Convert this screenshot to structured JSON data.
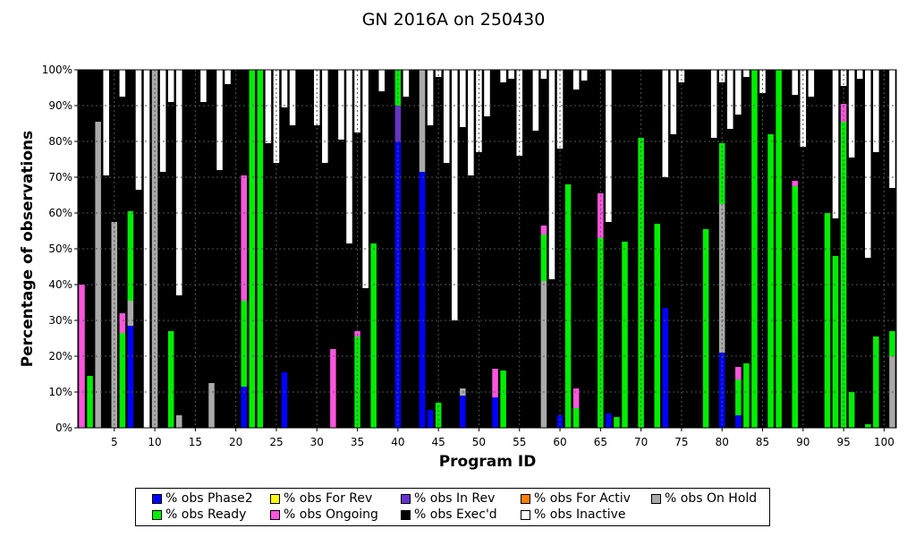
{
  "chart_data": {
    "type": "bar",
    "stacked": true,
    "title": "GN 2016A on 250430",
    "xlabel": "Program ID",
    "ylabel": "Percentage of observations",
    "ylim": [
      0,
      100
    ],
    "x_ticks": [
      5,
      10,
      15,
      20,
      25,
      30,
      35,
      40,
      45,
      50,
      55,
      60,
      65,
      70,
      75,
      80,
      85,
      90,
      95,
      100
    ],
    "y_ticks": [
      "0%",
      "10%",
      "20%",
      "30%",
      "40%",
      "50%",
      "60%",
      "70%",
      "80%",
      "90%",
      "100%"
    ],
    "grid": true,
    "legend_position": "bottom",
    "categories": [
      1,
      2,
      3,
      4,
      5,
      6,
      7,
      8,
      9,
      10,
      11,
      12,
      13,
      14,
      15,
      16,
      17,
      18,
      19,
      20,
      21,
      22,
      23,
      24,
      25,
      26,
      27,
      28,
      29,
      30,
      31,
      32,
      33,
      34,
      35,
      36,
      37,
      38,
      39,
      40,
      41,
      42,
      43,
      44,
      45,
      46,
      47,
      48,
      49,
      50,
      51,
      52,
      53,
      54,
      55,
      56,
      57,
      58,
      59,
      60,
      61,
      62,
      63,
      64,
      65,
      66,
      67,
      68,
      69,
      70,
      71,
      72,
      73,
      74,
      75,
      76,
      77,
      78,
      79,
      80,
      81,
      82,
      83,
      84,
      85,
      86,
      87,
      88,
      89,
      90,
      91,
      92,
      93,
      94,
      95,
      96,
      97,
      98,
      99,
      100,
      101
    ],
    "series": [
      {
        "name": "% obs Phase2",
        "color": "#0000ff",
        "values": [
          0,
          0,
          0,
          0,
          0,
          0,
          28.5,
          0,
          0,
          0,
          0,
          0,
          0,
          0,
          0,
          0,
          0,
          0,
          0,
          0,
          11.5,
          0,
          0,
          0,
          0,
          15.5,
          0,
          0,
          0,
          0,
          0,
          0,
          0,
          0,
          0,
          0,
          0,
          0,
          0,
          80,
          0,
          0,
          71.5,
          5,
          0,
          0,
          0,
          9,
          0,
          0,
          0,
          8.5,
          0,
          0,
          0,
          0,
          0,
          0,
          0,
          3.5,
          0,
          0,
          0,
          0,
          0,
          4,
          0,
          0,
          0,
          0,
          0,
          0,
          33.5,
          0,
          0,
          0,
          0,
          0,
          0,
          21,
          0,
          3.5,
          0,
          0,
          0,
          0,
          0,
          0,
          0,
          0,
          0,
          0,
          0,
          0,
          0,
          0,
          0,
          0,
          0,
          0,
          0
        ]
      },
      {
        "name": "% obs For Rev",
        "color": "#ffff00",
        "values": [
          0,
          0,
          0,
          0,
          0,
          0,
          0,
          0,
          0,
          0,
          0,
          0,
          0,
          0,
          0,
          0,
          0,
          0,
          0,
          0,
          0,
          0,
          0,
          0,
          0,
          0,
          0,
          0,
          0,
          0,
          0,
          0,
          0,
          0,
          0,
          0,
          0,
          0,
          0,
          0,
          0,
          0,
          0,
          0,
          0,
          0,
          0,
          0,
          0,
          0,
          0,
          0,
          0,
          0,
          0,
          0,
          0,
          0,
          0,
          0,
          0,
          0,
          0,
          0,
          0,
          0,
          0,
          0,
          0,
          0,
          0,
          0,
          0,
          0,
          0,
          0,
          0,
          0,
          0,
          0,
          0,
          0,
          0,
          0,
          0,
          0,
          0,
          0,
          0,
          0,
          0,
          0,
          0,
          0,
          0,
          0,
          0,
          0,
          0,
          0,
          0
        ]
      },
      {
        "name": "% obs In Rev",
        "color": "#6633cc",
        "values": [
          0,
          0,
          0,
          0,
          0,
          0,
          0,
          0,
          0,
          0,
          0,
          0,
          0,
          0,
          0,
          0,
          0,
          0,
          0,
          0,
          0,
          0,
          0,
          0,
          0,
          0,
          0,
          0,
          0,
          0,
          0,
          0,
          0,
          0,
          0,
          0,
          0,
          0,
          0,
          10,
          0,
          0,
          0,
          0,
          0,
          0,
          0,
          0,
          0,
          0,
          0,
          0,
          0,
          0,
          0,
          0,
          0,
          0,
          0,
          0,
          0,
          0,
          0,
          0,
          0,
          0,
          0,
          0,
          0,
          0,
          0,
          0,
          0,
          0,
          0,
          0,
          0,
          0,
          0,
          0,
          0,
          0,
          0,
          0,
          0,
          0,
          0,
          0,
          0,
          0,
          0,
          0,
          0,
          0,
          0,
          0,
          0,
          0,
          0,
          0,
          0
        ]
      },
      {
        "name": "% obs For Activ",
        "color": "#ff8000",
        "values": [
          0,
          0,
          0,
          0,
          0,
          0,
          0,
          0,
          0,
          0,
          0,
          0,
          0,
          0,
          0,
          0,
          0,
          0,
          0,
          0,
          0,
          0,
          0,
          0,
          0,
          0,
          0,
          0,
          0,
          0,
          0,
          0,
          0,
          0,
          0,
          0,
          0,
          0,
          0,
          0,
          0,
          0,
          0,
          0,
          0,
          0,
          0,
          0,
          0,
          0,
          0,
          0,
          0,
          0,
          0,
          0,
          0,
          0,
          0,
          0,
          0,
          0,
          0,
          0,
          0,
          0,
          0,
          0,
          0,
          0,
          0,
          0,
          0,
          0,
          0,
          0,
          0,
          0,
          0,
          0,
          0,
          0,
          0,
          0,
          0,
          0,
          0,
          0,
          0,
          0,
          0,
          0,
          0,
          0,
          0,
          0,
          0,
          0,
          0,
          0,
          0
        ]
      },
      {
        "name": "% obs On Hold",
        "color": "#aaaaaa",
        "values": [
          0,
          0,
          85.5,
          0,
          57.5,
          0,
          7,
          0,
          0,
          100,
          0,
          0,
          3.5,
          0,
          0,
          0,
          12.5,
          0,
          0,
          0,
          0,
          0,
          0,
          0,
          0,
          0,
          0,
          0,
          0,
          0,
          0,
          0,
          0,
          0,
          0,
          0,
          0,
          0,
          0,
          0,
          0,
          0,
          28.5,
          0,
          0,
          0,
          0,
          2,
          0,
          0,
          0,
          0,
          0,
          0,
          0,
          0,
          0,
          41,
          0,
          0,
          0,
          0,
          0,
          0,
          0,
          0,
          0,
          0,
          0,
          0,
          0,
          0,
          0,
          0,
          0,
          0,
          0,
          0,
          0,
          41.5,
          0,
          0,
          0,
          0,
          0,
          0,
          0,
          0,
          0,
          0,
          0,
          0,
          0,
          0,
          0,
          0,
          0,
          0,
          0,
          0,
          20
        ]
      },
      {
        "name": "% obs Ready",
        "color": "#00ee00",
        "values": [
          0,
          14.5,
          0,
          0,
          0,
          26.5,
          25,
          0,
          0,
          0,
          0,
          27,
          0,
          0,
          0,
          0,
          0,
          0,
          0,
          0,
          24,
          100,
          100,
          0,
          0,
          0,
          0,
          0,
          0,
          0,
          0,
          0,
          0,
          0,
          25.5,
          0,
          51.5,
          0,
          0,
          10,
          0,
          0,
          0,
          0,
          7,
          0,
          0,
          0,
          0,
          0,
          0,
          0,
          16,
          0,
          0,
          0,
          0,
          13,
          0,
          0,
          68,
          5.5,
          0,
          0,
          53,
          0,
          3,
          52,
          0,
          81,
          0,
          57,
          0,
          0,
          0,
          0,
          0,
          55.5,
          0,
          17,
          0,
          10,
          18,
          100,
          0,
          82,
          100,
          0,
          67.5,
          0,
          0,
          0,
          60,
          48,
          85.5,
          10,
          0,
          1,
          25.5,
          0,
          7
        ]
      },
      {
        "name": "% obs Ongoing",
        "color": "#ff55dd",
        "values": [
          40,
          0,
          0,
          0,
          0,
          5.5,
          0,
          0,
          0,
          0,
          0,
          0,
          0,
          0,
          0,
          0,
          0,
          0,
          0,
          0,
          35,
          0,
          0,
          0,
          0,
          0,
          0,
          0,
          0,
          0,
          0,
          22,
          0,
          0,
          1.5,
          0,
          0,
          0,
          0,
          0,
          0,
          0,
          0,
          0,
          0,
          0,
          0,
          0,
          0,
          0,
          0,
          8,
          0,
          0,
          0,
          0,
          0,
          2.5,
          0,
          0,
          0,
          5.5,
          0,
          0,
          12.5,
          0,
          0,
          0,
          0,
          0,
          0,
          0,
          0,
          0,
          0,
          0,
          0,
          0,
          0,
          0,
          0,
          3.5,
          0,
          0,
          0,
          0,
          0,
          0,
          1.5,
          0,
          0,
          0,
          0,
          0,
          5,
          0,
          0,
          0,
          0,
          0,
          0
        ]
      },
      {
        "name": "% obs Exec'd",
        "color": "#000000",
        "values": [
          60,
          0,
          14.5,
          70.5,
          42.5,
          60.5,
          39.5,
          66.5,
          0,
          0,
          71.5,
          64,
          33.5,
          100,
          100,
          91,
          87.5,
          72,
          96,
          100,
          29.5,
          0,
          0,
          79.5,
          74,
          74,
          84.5,
          100,
          100,
          84.5,
          74,
          78,
          80.5,
          51.5,
          55.5,
          39,
          48.5,
          94,
          100,
          0,
          92.5,
          71.5,
          0,
          79.5,
          91,
          74,
          30,
          73,
          70.5,
          77,
          87,
          83.5,
          80.5,
          97.5,
          76,
          100,
          83,
          41,
          41.5,
          74.5,
          32,
          83.5,
          97,
          100,
          34.5,
          53.5,
          97,
          48,
          100,
          19,
          100,
          43,
          36.5,
          82,
          96.5,
          100,
          100,
          44.5,
          81,
          17,
          83.5,
          70.5,
          80,
          0,
          93.5,
          18,
          0,
          100,
          24,
          78.5,
          92.5,
          100,
          40,
          10.5,
          5,
          65.5,
          97.5,
          46.5,
          51.5,
          100,
          40
        ]
      },
      {
        "name": "% obs Inactive",
        "color": "#ffffff",
        "values": [
          0,
          0,
          0,
          29.5,
          0,
          7.5,
          0,
          33.5,
          100,
          0,
          28.5,
          9,
          63,
          0,
          0,
          9,
          0,
          28,
          4,
          0,
          0,
          0,
          0,
          20.5,
          26,
          10.5,
          15.5,
          0,
          0,
          15.5,
          26,
          0,
          19.5,
          48.5,
          17.5,
          61,
          0,
          6,
          0,
          0,
          7.5,
          0,
          0,
          15.5,
          2,
          26,
          70,
          16,
          29.5,
          23,
          13,
          0,
          3.5,
          2.5,
          24,
          0,
          17,
          2.5,
          58.5,
          22,
          0,
          5.5,
          3,
          0,
          0,
          42.5,
          0,
          0,
          0,
          0,
          0,
          0,
          30,
          18,
          3.5,
          0,
          0,
          0,
          19,
          4.5,
          16.5,
          12.5,
          2,
          0,
          6.5,
          0,
          0,
          0,
          7,
          21.5,
          7.5,
          0,
          0,
          41.5,
          4.5,
          24.5,
          2.5,
          52.5,
          23,
          0,
          33
        ]
      }
    ]
  }
}
